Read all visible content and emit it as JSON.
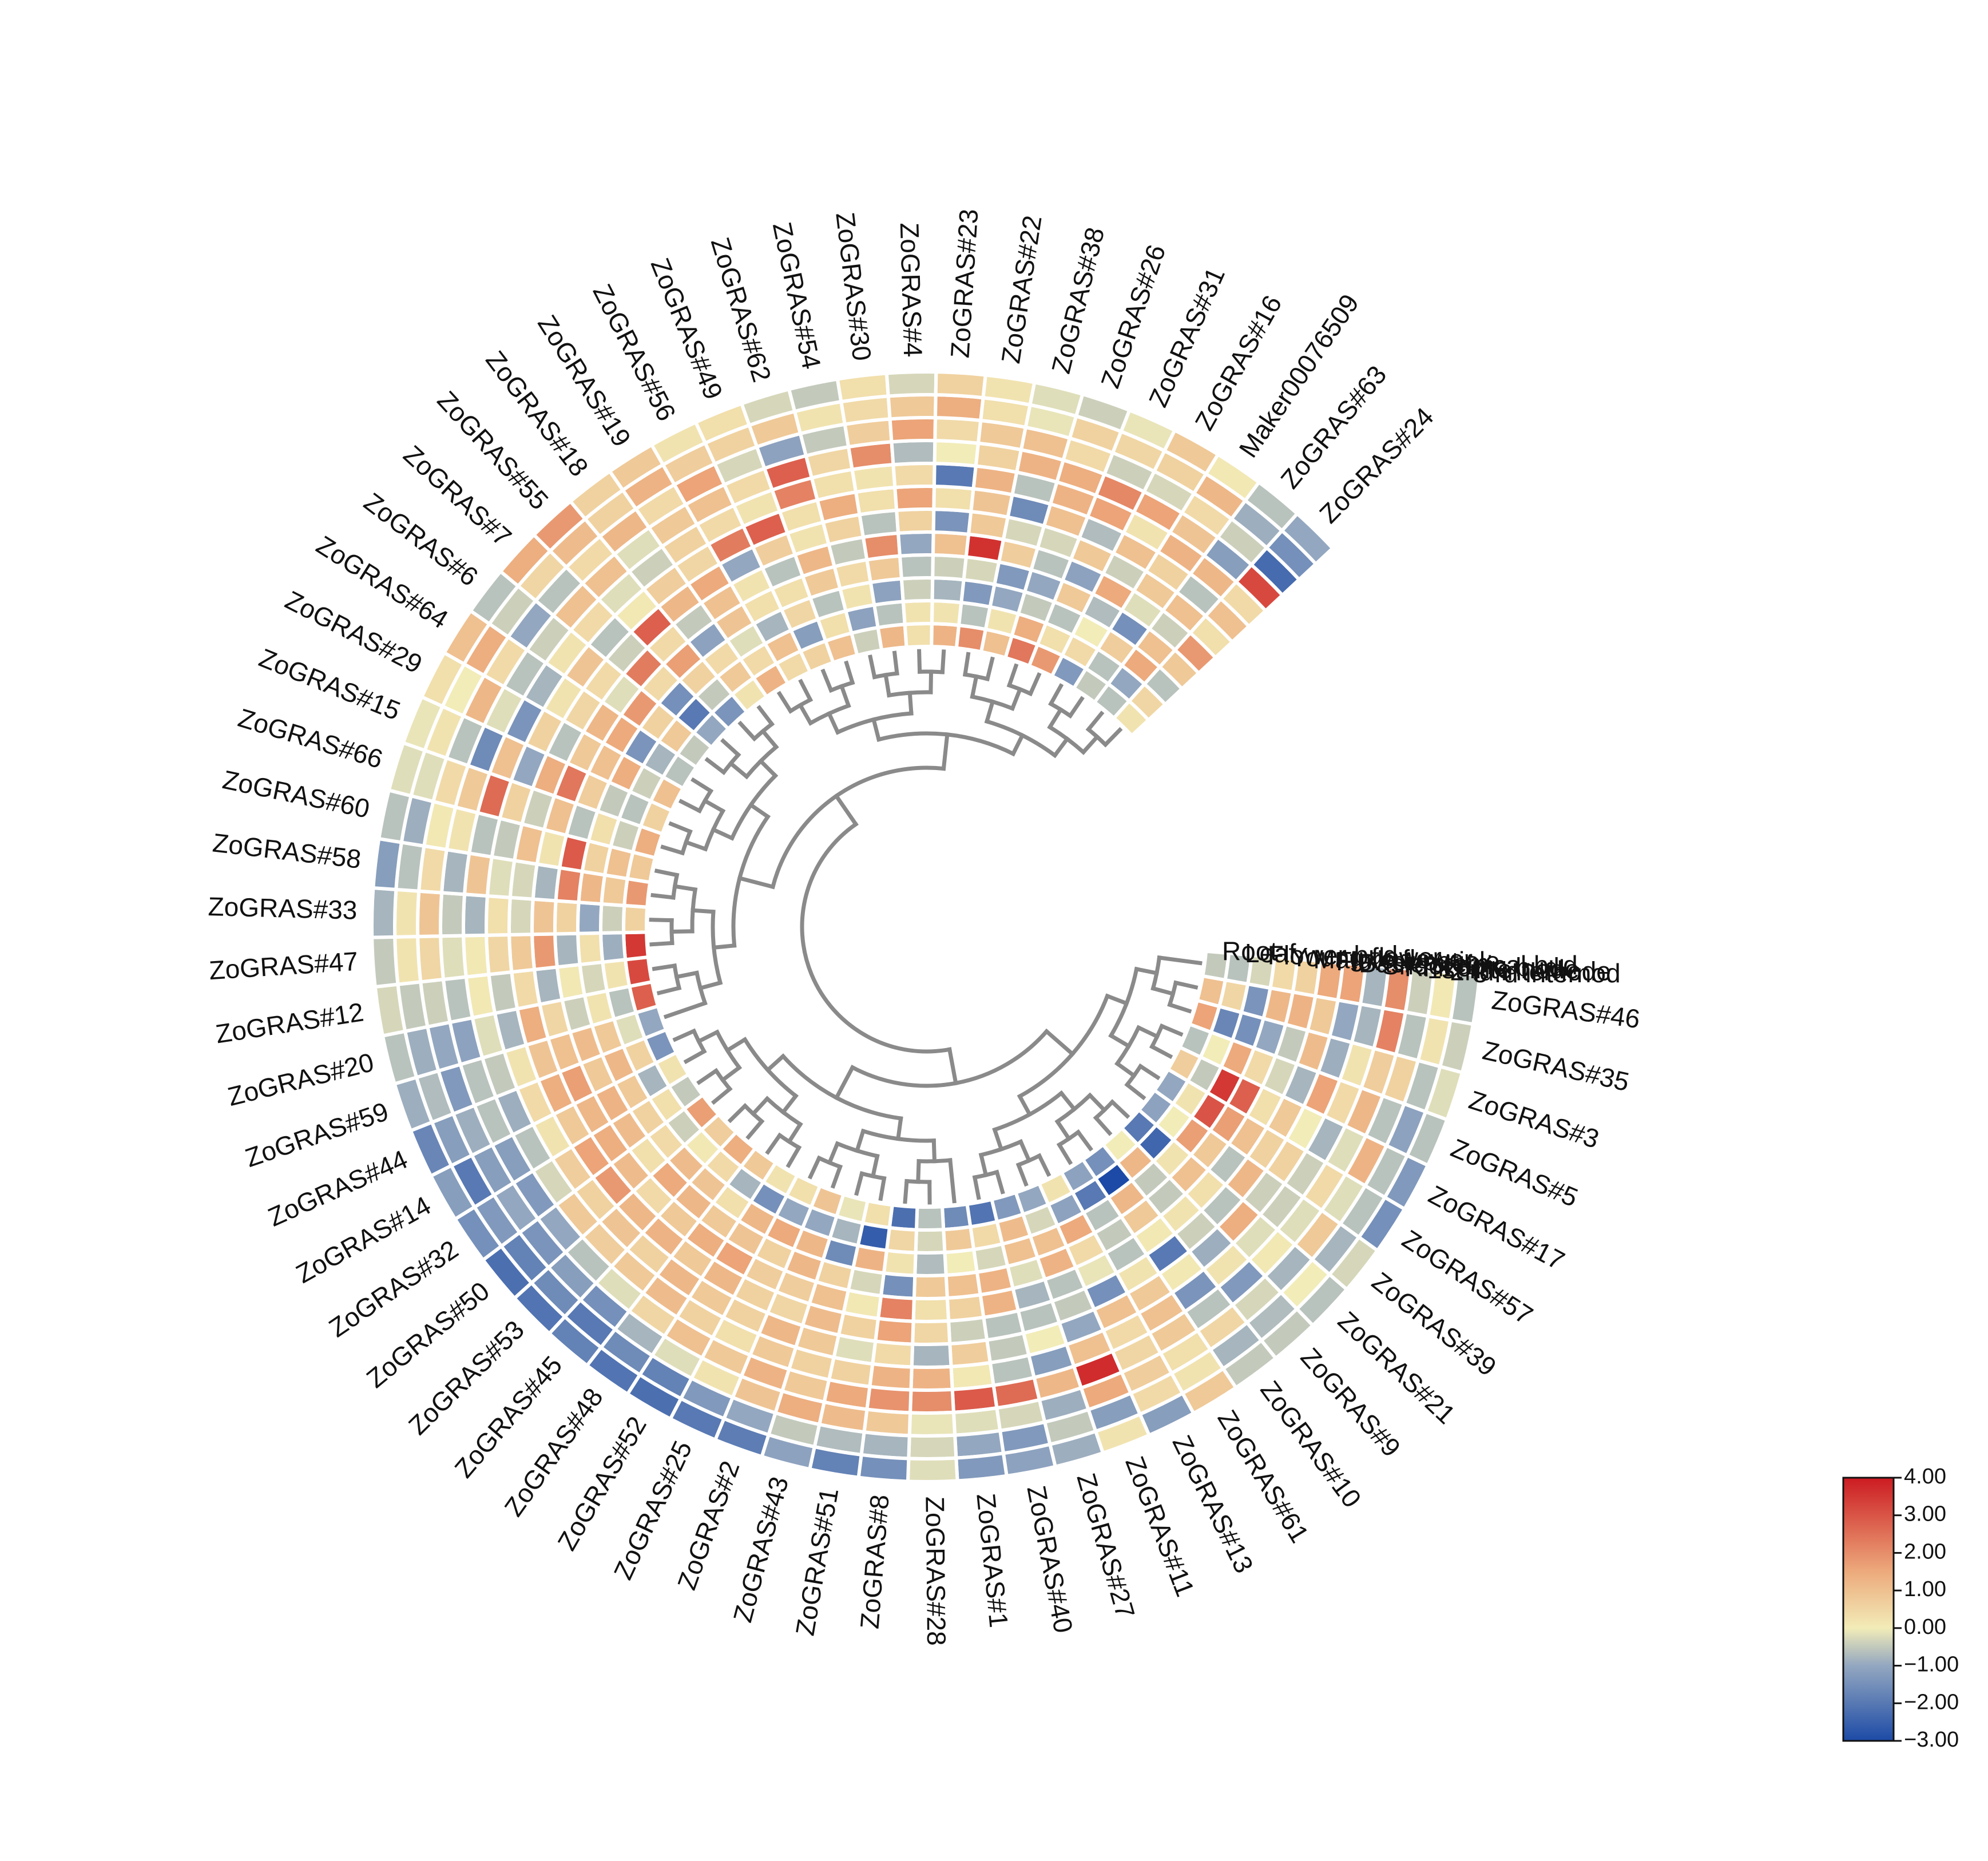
{
  "chart_data": {
    "type": "heatmap",
    "layout": "circular",
    "title": "",
    "tissues": [
      "Root",
      "Leaf",
      "Flower bud",
      "Young flower",
      "Mature flower",
      "Flower petiole",
      "Basle stem",
      "Shoot apical bud",
      "Rhizome bud",
      "1st internode",
      "2nd internode",
      "3 rd internod"
    ],
    "tissue_order_note": "inner ring to outer ring",
    "genes": [
      "ZoGRAS#46",
      "ZoGRAS#35",
      "ZoGRAS#3",
      "ZoGRAS#5",
      "ZoGRAS#17",
      "ZoGRAS#57",
      "ZoGRAS#39",
      "ZoGRAS#21",
      "ZoGRAS#9",
      "ZoGRAS#10",
      "ZoGRAS#61",
      "ZoGRAS#13",
      "ZoGRAS#11",
      "ZoGRAS#27",
      "ZoGRAS#40",
      "ZoGRAS#1",
      "ZoGRAS#28",
      "ZoGRAS#8",
      "ZoGRAS#51",
      "ZoGRAS#43",
      "ZoGRAS#2",
      "ZoGRAS#25",
      "ZoGRAS#52",
      "ZoGRAS#48",
      "ZoGRAS#45",
      "ZoGRAS#53",
      "ZoGRAS#50",
      "ZoGRAS#32",
      "ZoGRAS#14",
      "ZoGRAS#44",
      "ZoGRAS#59",
      "ZoGRAS#20",
      "ZoGRAS#12",
      "ZoGRAS#47",
      "ZoGRAS#33",
      "ZoGRAS#58",
      "ZoGRAS#60",
      "ZoGRAS#66",
      "ZoGRAS#15",
      "ZoGRAS#29",
      "ZoGRAS#64",
      "ZoGRAS#6",
      "ZoGRAS#7",
      "ZoGRAS#55",
      "ZoGRAS#18",
      "ZoGRAS#19",
      "ZoGRAS#56",
      "ZoGRAS#49",
      "ZoGRAS#62",
      "ZoGRAS#54",
      "ZoGRAS#30",
      "ZoGRAS#4",
      "ZoGRAS#23",
      "ZoGRAS#22",
      "ZoGRAS#38",
      "ZoGRAS#26",
      "ZoGRAS#31",
      "ZoGRAS#16",
      "Maker00076509",
      "ZoGRAS#63",
      "ZoGRAS#24"
    ],
    "values": [
      [
        -0.5,
        -0.6,
        -0.3,
        0.4,
        0.6,
        1.5,
        1.6,
        -0.8,
        2.0,
        -0.4,
        0.1,
        -0.6
      ],
      [
        1.0,
        0.5,
        -1.4,
        1.2,
        1.3,
        0.8,
        -1.0,
        -0.8,
        2.2,
        -0.6,
        0.2,
        -0.4
      ],
      [
        1.6,
        -1.7,
        -1.5,
        -1.0,
        -0.5,
        1.1,
        -0.9,
        0.2,
        0.7,
        0.6,
        -0.6,
        -0.2
      ],
      [
        -0.6,
        0.0,
        1.5,
        0.4,
        -0.3,
        -0.8,
        1.6,
        0.4,
        1.2,
        -0.6,
        -1.1,
        -0.6
      ],
      [
        0.7,
        -0.5,
        3.5,
        2.8,
        0.3,
        0.8,
        0.0,
        -0.8,
        -0.2,
        1.3,
        -0.6,
        -1.3
      ],
      [
        -1.0,
        0.2,
        3.0,
        1.7,
        1.0,
        0.6,
        0.6,
        -0.4,
        0.4,
        -0.2,
        -0.6,
        -1.5
      ],
      [
        -1.1,
        0.0,
        1.7,
        0.8,
        -0.6,
        1.2,
        -0.4,
        -0.4,
        -0.2,
        0.8,
        -0.8,
        -0.3
      ],
      [
        -2.0,
        -2.4,
        0.2,
        1.0,
        0.3,
        -0.6,
        1.4,
        -0.2,
        0.1,
        -0.8,
        0.0,
        -0.6
      ],
      [
        0.0,
        1.2,
        -0.5,
        -0.5,
        0.2,
        -0.4,
        -0.9,
        0.2,
        -1.3,
        -0.3,
        -0.7,
        -0.5
      ],
      [
        -1.5,
        -3.0,
        1.2,
        0.8,
        0.1,
        -2.0,
        0.1,
        -1.4,
        -0.6,
        0.5,
        -0.8,
        -0.5
      ],
      [
        -1.1,
        -2.0,
        -0.6,
        -0.5,
        -0.6,
        0.2,
        0.8,
        1.0,
        0.8,
        0.3,
        0.2,
        0.8
      ],
      [
        0.2,
        -1.1,
        1.5,
        0.4,
        -0.1,
        -1.5,
        1.0,
        0.4,
        0.5,
        0.7,
        0.4,
        -1.2
      ],
      [
        -1.0,
        -0.3,
        1.0,
        1.3,
        -0.6,
        -0.5,
        -1.0,
        1.0,
        3.7,
        1.5,
        -1.2,
        0.2
      ],
      [
        -1.3,
        1.1,
        1.0,
        -0.2,
        -0.8,
        -0.6,
        0.0,
        -1.2,
        1.2,
        -0.9,
        -0.5,
        -0.9
      ],
      [
        -2.1,
        0.4,
        -0.3,
        1.3,
        1.3,
        -0.6,
        -0.5,
        -0.6,
        2.6,
        -0.3,
        -1.3,
        -1.1
      ],
      [
        -1.6,
        0.8,
        0.0,
        1.0,
        0.6,
        -0.4,
        0.7,
        0.1,
        2.9,
        -0.2,
        -1.0,
        -1.3
      ],
      [
        -0.6,
        -0.3,
        -0.7,
        0.8,
        0.3,
        0.5,
        -0.8,
        1.3,
        2.0,
        -0.1,
        -0.3,
        -0.2
      ],
      [
        -2.2,
        0.5,
        0.2,
        -1.5,
        2.2,
        1.6,
        0.4,
        1.3,
        1.9,
        0.8,
        -0.8,
        -1.5
      ],
      [
        0.3,
        -2.6,
        1.3,
        -0.3,
        0.1,
        0.6,
        -0.2,
        0.6,
        1.5,
        1.1,
        -0.7,
        -1.8
      ],
      [
        -0.1,
        -0.8,
        -1.6,
        0.6,
        1.0,
        1.1,
        0.8,
        0.6,
        0.8,
        1.4,
        -0.5,
        -1.1
      ],
      [
        0.9,
        -1.0,
        1.2,
        1.2,
        0.7,
        0.5,
        1.2,
        0.8,
        1.3,
        0.9,
        -1.0,
        -1.9
      ],
      [
        0.3,
        -1.0,
        1.5,
        0.6,
        0.7,
        0.6,
        0.6,
        0.3,
        0.8,
        0.2,
        -1.3,
        -2.0
      ],
      [
        0.2,
        -1.5,
        1.2,
        0.9,
        1.6,
        1.2,
        0.8,
        0.6,
        1.0,
        -0.2,
        -1.8,
        -2.2
      ],
      [
        0.8,
        -0.8,
        0.3,
        0.8,
        1.4,
        0.8,
        1.2,
        1.1,
        0.5,
        -0.8,
        -1.6,
        -2.1
      ],
      [
        1.4,
        0.4,
        0.9,
        1.2,
        0.8,
        1.3,
        0.6,
        0.8,
        -0.2,
        -1.5,
        -2.0,
        -1.8
      ],
      [
        0.7,
        0.1,
        1.1,
        1.5,
        0.4,
        1.2,
        0.9,
        0.7,
        -0.6,
        -1.2,
        -1.6,
        -2.1
      ],
      [
        1.7,
        -0.4,
        0.4,
        0.3,
        1.1,
        1.8,
        0.6,
        0.8,
        -1.0,
        -1.4,
        -1.8,
        -2.2
      ],
      [
        -0.5,
        0.3,
        0.6,
        1.1,
        1.4,
        1.6,
        0.7,
        -0.3,
        -1.3,
        -1.0,
        -1.3,
        -1.5
      ],
      [
        0.2,
        -0.8,
        0.8,
        1.3,
        1.2,
        0.8,
        0.2,
        -0.6,
        -1.2,
        -1.2,
        -2.0,
        -1.2
      ],
      [
        -1.4,
        0.6,
        1.2,
        0.8,
        1.7,
        1.4,
        0.4,
        -0.9,
        -0.6,
        -0.9,
        -1.2,
        -1.7
      ],
      [
        -1.0,
        -0.2,
        0.8,
        1.1,
        1.0,
        0.9,
        0.2,
        -0.5,
        -0.6,
        -1.3,
        -0.7,
        -0.9
      ],
      [
        2.8,
        -0.6,
        0.2,
        -0.4,
        0.5,
        1.4,
        -0.8,
        -0.2,
        -1.1,
        -1.0,
        -0.9,
        -0.6
      ],
      [
        3.2,
        0.2,
        -0.3,
        0.1,
        -0.8,
        0.4,
        -0.5,
        0.1,
        -0.6,
        -0.4,
        -0.5,
        -0.3
      ],
      [
        3.5,
        -0.9,
        0.3,
        -0.8,
        1.8,
        0.8,
        0.5,
        0.1,
        -0.2,
        0.5,
        0.2,
        -0.5
      ],
      [
        0.6,
        -0.4,
        -1.0,
        0.6,
        0.9,
        -0.3,
        0.3,
        -0.8,
        -0.5,
        0.9,
        0.2,
        -0.8
      ],
      [
        1.8,
        0.8,
        1.2,
        2.2,
        -0.8,
        -0.3,
        -0.2,
        0.9,
        -0.8,
        0.4,
        -0.6,
        -1.2
      ],
      [
        0.8,
        1.0,
        0.6,
        2.9,
        0.2,
        1.0,
        -0.5,
        -0.6,
        0.2,
        0.1,
        -0.9,
        -0.6
      ],
      [
        1.4,
        -0.4,
        0.3,
        -0.6,
        1.0,
        -0.4,
        0.6,
        2.6,
        0.8,
        0.4,
        -0.2,
        -0.2
      ],
      [
        0.6,
        -0.6,
        -0.5,
        0.7,
        2.4,
        1.4,
        -1.0,
        1.0,
        -1.6,
        -0.6,
        0.2,
        -0.1
      ],
      [
        1.0,
        -0.4,
        1.4,
        1.0,
        0.8,
        -0.6,
        0.6,
        -1.4,
        -0.2,
        1.2,
        0.0,
        0.3
      ],
      [
        -0.6,
        -0.8,
        -1.4,
        1.5,
        1.2,
        0.5,
        0.2,
        -0.8,
        -0.6,
        0.4,
        1.4,
        1.0
      ],
      [
        -0.5,
        0.8,
        0.6,
        1.8,
        -0.2,
        0.4,
        0.9,
        0.2,
        -0.4,
        -1.0,
        -0.4,
        -0.6
      ],
      [
        -1.0,
        -2.0,
        -1.5,
        0.4,
        2.3,
        -0.4,
        -0.6,
        0.4,
        1.0,
        -0.6,
        0.5,
        1.4
      ],
      [
        -1.4,
        -0.5,
        0.6,
        1.7,
        0.4,
        2.8,
        0.1,
        -0.2,
        1.0,
        0.4,
        1.1,
        1.8
      ],
      [
        0.2,
        0.8,
        0.4,
        -1.1,
        -0.5,
        1.2,
        0.7,
        -0.4,
        -0.2,
        1.2,
        0.6,
        0.6
      ],
      [
        1.3,
        0.4,
        -0.2,
        0.9,
        1.0,
        1.5,
        0.5,
        0.6,
        0.8,
        0.4,
        1.3,
        0.8
      ],
      [
        0.4,
        1.0,
        -0.8,
        0.3,
        0.2,
        -1.0,
        2.3,
        0.4,
        1.0,
        1.6,
        0.7,
        0.2
      ],
      [
        0.6,
        -1.2,
        0.5,
        0.3,
        -0.6,
        0.7,
        2.8,
        0.2,
        0.4,
        -0.3,
        0.6,
        0.3
      ],
      [
        1.0,
        0.3,
        -0.6,
        0.8,
        1.2,
        0.2,
        0.3,
        2.2,
        2.8,
        -1.1,
        0.8,
        -0.3
      ],
      [
        -0.4,
        -1.1,
        0.2,
        0.4,
        -0.5,
        0.6,
        1.4,
        0.3,
        0.5,
        -0.5,
        0.2,
        -0.5
      ],
      [
        1.2,
        -0.6,
        -1.1,
        0.8,
        2.0,
        -0.6,
        0.3,
        0.2,
        2.0,
        0.7,
        0.4,
        0.3
      ],
      [
        0.3,
        0.2,
        -0.4,
        -0.6,
        -1.0,
        0.6,
        1.6,
        0.4,
        -0.7,
        1.6,
        0.8,
        -0.3
      ],
      [
        1.3,
        0.2,
        -0.8,
        -0.4,
        1.0,
        -1.4,
        0.3,
        -2.0,
        0.0,
        0.4,
        1.4,
        0.6
      ],
      [
        2.0,
        -0.6,
        -1.3,
        -0.3,
        3.6,
        0.8,
        0.9,
        1.3,
        0.6,
        0.8,
        0.3,
        0.2
      ],
      [
        1.0,
        0.2,
        -1.0,
        -1.3,
        0.7,
        -0.3,
        -1.6,
        -0.6,
        1.3,
        1.0,
        -0.1,
        -0.2
      ],
      [
        2.4,
        1.4,
        -0.5,
        -1.0,
        -0.6,
        -0.3,
        1.0,
        1.3,
        1.4,
        0.4,
        0.6,
        -0.4
      ],
      [
        1.8,
        0.3,
        -0.6,
        0.8,
        -1.1,
        0.8,
        -0.7,
        1.6,
        2.1,
        -0.4,
        0.5,
        -0.1
      ],
      [
        -1.3,
        0.4,
        0.0,
        -0.7,
        1.5,
        -0.4,
        1.0,
        0.2,
        1.6,
        -0.3,
        0.6,
        0.8
      ],
      [
        -0.5,
        -0.6,
        0.7,
        -1.5,
        -0.2,
        0.8,
        0.6,
        1.3,
        0.9,
        0.4,
        1.2,
        0.1
      ],
      [
        -0.6,
        -1.0,
        1.5,
        1.0,
        -0.4,
        1.0,
        -0.6,
        1.2,
        -1.2,
        -0.4,
        -0.9,
        -0.6
      ],
      [
        0.2,
        0.5,
        -0.6,
        0.8,
        1.8,
        0.3,
        1.0,
        0.4,
        3.2,
        -2.3,
        -1.5,
        -1.0
      ]
    ],
    "scale": {
      "min": -3.0,
      "max": 4.0,
      "ticks": [
        "4.00",
        "3.00",
        "2.00",
        "1.00",
        "0.00",
        "−1.00",
        "−2.00",
        "−3.00"
      ],
      "tick_values": [
        4,
        3,
        2,
        1,
        0,
        -1,
        -2,
        -3
      ],
      "colors": {
        "low": "#1c4aa6",
        "mid_low": "#93a7c0",
        "mid": "#f2ecb8",
        "mid_high": "#edaa7c",
        "high": "#cc1b22"
      }
    },
    "legend_position": "bottom-right",
    "xlabel": "",
    "ylabel": ""
  }
}
